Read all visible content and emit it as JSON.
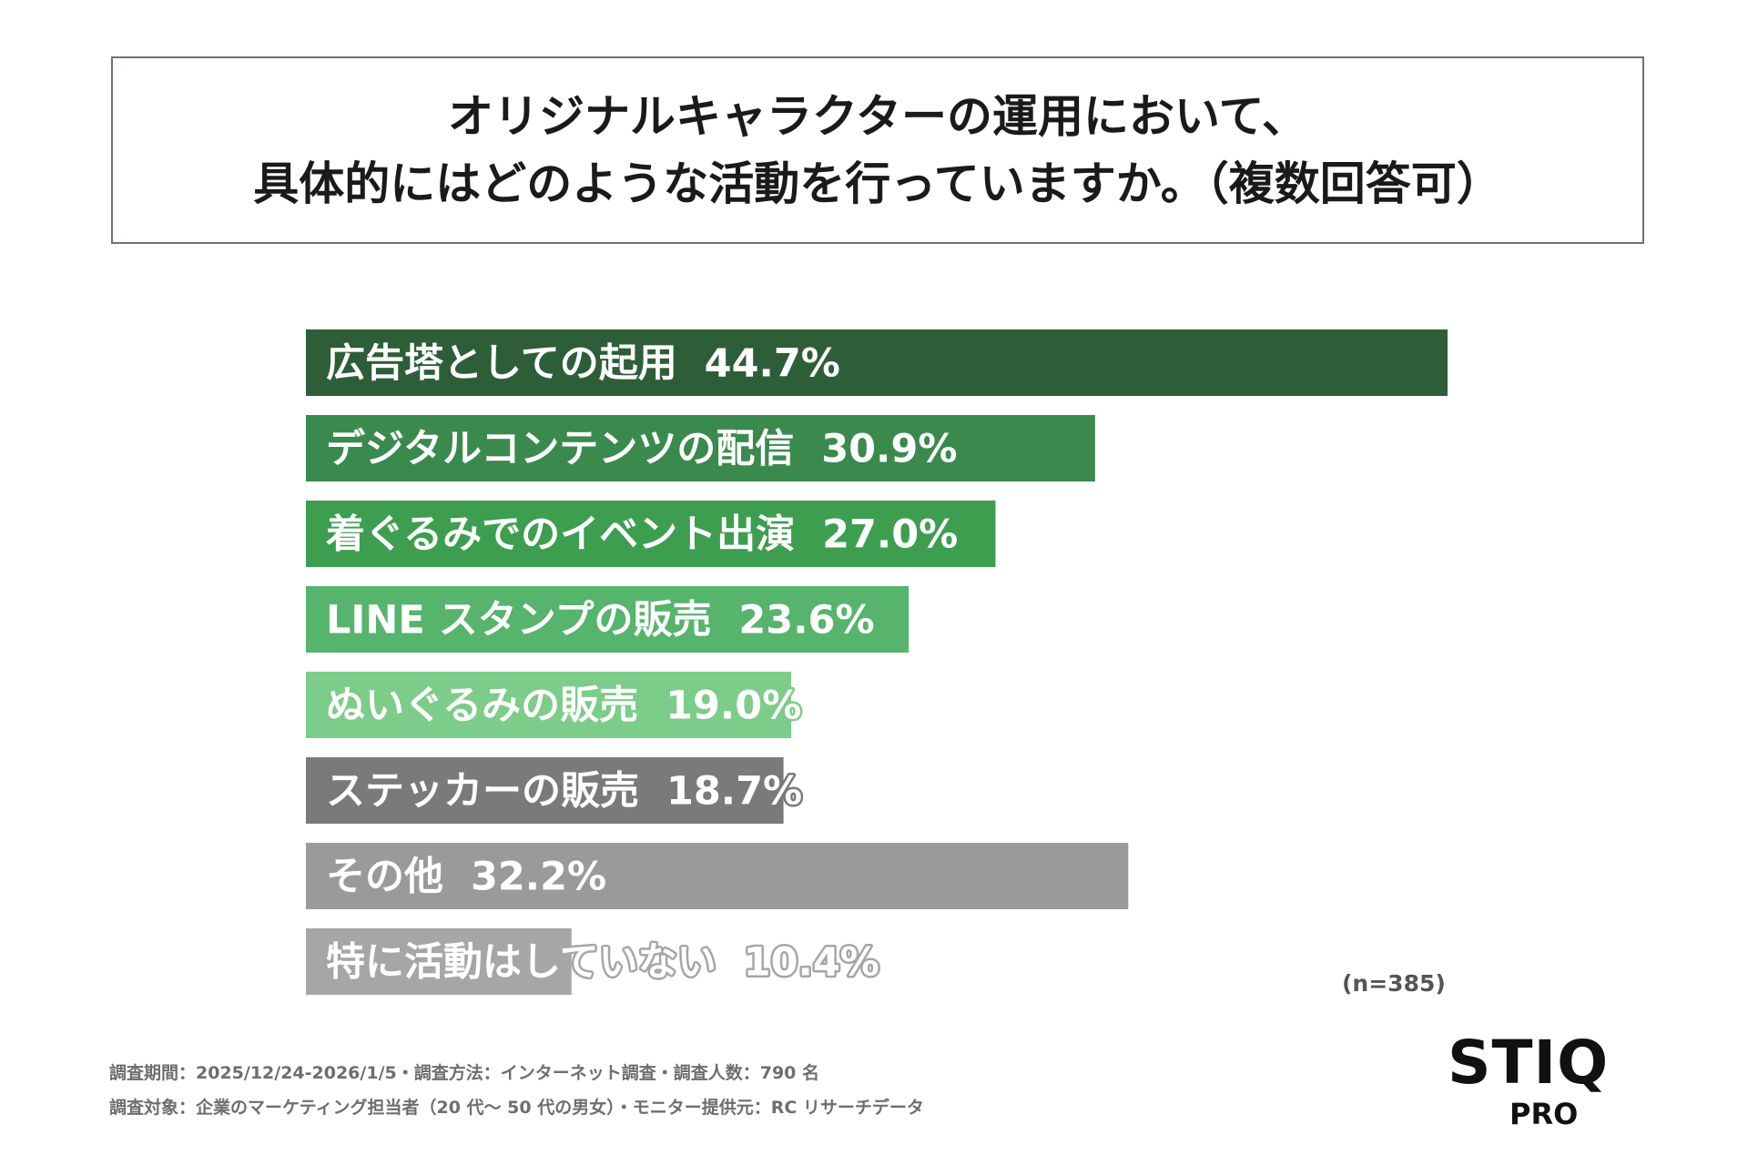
{
  "title": {
    "line1": "オリジナルキャラクターの運用において、",
    "line2": "具体的にはどのような活動を行っていますか。（複数回答可）"
  },
  "chart_data": {
    "type": "bar",
    "orientation": "horizontal",
    "title": "オリジナルキャラクターの運用において、具体的にはどのような活動を行っていますか。（複数回答可）",
    "unit": "%",
    "categories": [
      "広告塔としての起用",
      "デジタルコンテンツの配信",
      "着ぐるみでのイベント出演",
      "LINE スタンプの販売",
      "ぬいぐるみの販売",
      "ステッカーの販売",
      "その他",
      "特に活動はしていない"
    ],
    "values": [
      44.7,
      30.9,
      27.0,
      23.6,
      19.0,
      18.7,
      32.2,
      10.4
    ],
    "value_labels": [
      "44.7%",
      "30.9%",
      "27.0%",
      "23.6%",
      "19.0%",
      "18.7%",
      "32.2%",
      "10.4%"
    ],
    "colors": [
      "#2d5e38",
      "#3a8a4e",
      "#3d9e50",
      "#56b46c",
      "#7ccc8a",
      "#7a7a7a",
      "#9a9a9a",
      "#a6a6a6"
    ],
    "xlim": [
      0,
      100
    ],
    "grid": false,
    "legend": "none"
  },
  "sample_size": "(n=385)",
  "footnotes": {
    "line1": "調査期間：2025/12/24-2026/1/5・調査方法：インターネット調査・調査人数：790 名",
    "line2": "調査対象：企業のマーケティング担当者（20 代～ 50 代の男女）・モニター提供元：RC リサーチデータ"
  },
  "logo": {
    "main": "STIQ",
    "sub": "PRO"
  }
}
